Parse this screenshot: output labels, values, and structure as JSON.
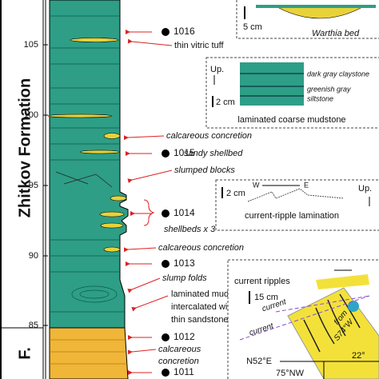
{
  "formation": {
    "name": "Zhitkov Formation",
    "lower_unit": "F."
  },
  "depth_scale": [
    "105",
    "100",
    "95",
    "90",
    "85"
  ],
  "samples": [
    "1016",
    "1015",
    "1014",
    "1013",
    "1012",
    "1011"
  ],
  "annotations": [
    "thin vitric tuff",
    "calcareous concretion",
    "sandy shellbed",
    "slumped blocks",
    "shellbeds x 3",
    "calcareous concretion",
    "slump folds",
    "laminated mudst.",
    "intercalated with",
    "thin sandstone",
    "calcareous",
    "concretion"
  ],
  "insets": [
    {
      "scale": "5 cm",
      "caption": "Warthia bed"
    },
    {
      "up": "Up.",
      "scale": "2 cm",
      "labels": [
        "dark gray claystone",
        "greenish gray",
        "siltstone"
      ],
      "caption": "laminated coarse mudstone"
    },
    {
      "scale": "2 cm",
      "west": "W",
      "east": "E",
      "up": "Up.",
      "caption": "current-ripple lamination"
    },
    {
      "caption": "current ripples",
      "current_labels": [
        "current",
        "current"
      ],
      "scale": "15 cm",
      "from": [
        "from",
        "S74°W"
      ],
      "strike": "N52°E",
      "dip": "22°",
      "dip_dir": "75°NW"
    }
  ]
}
